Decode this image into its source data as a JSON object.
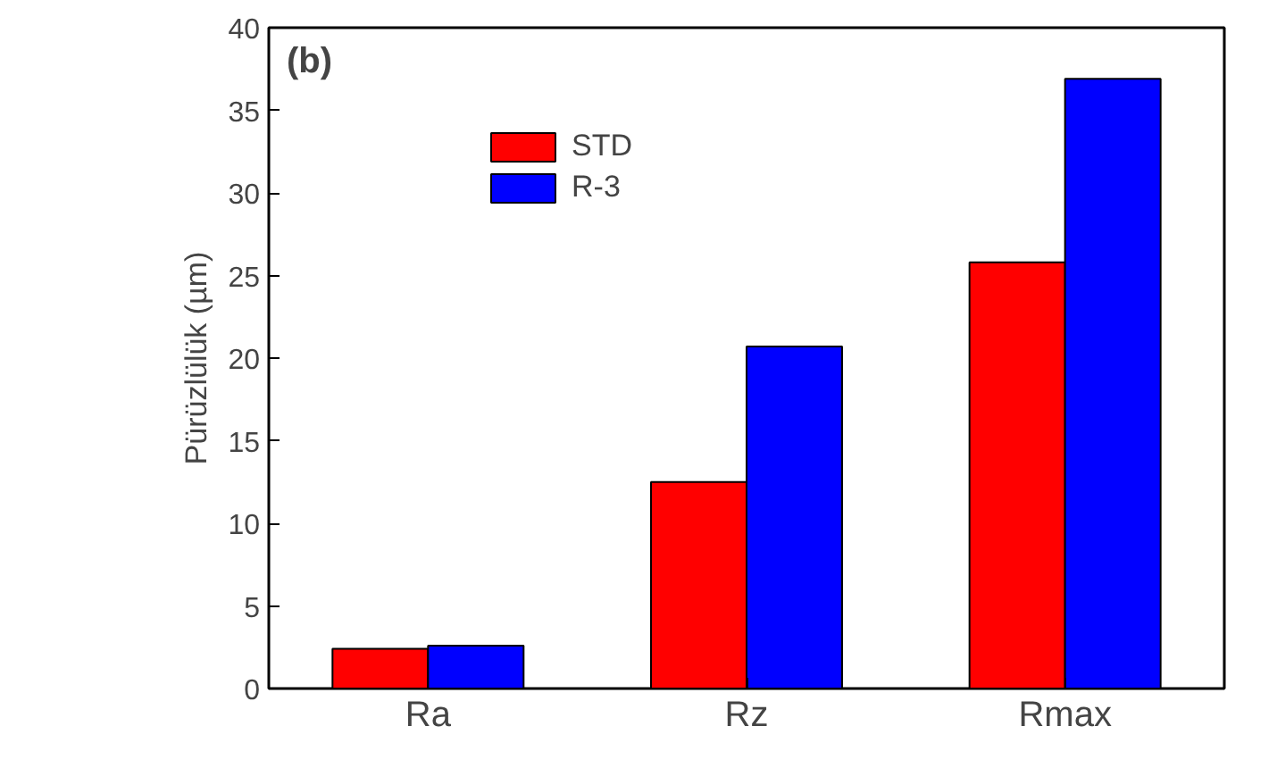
{
  "chart_data": {
    "type": "bar",
    "ylabel": "Pürüzlülük (µm)",
    "annotations": [
      "(b)"
    ],
    "categories": [
      "Ra",
      "Rz",
      "Rmax"
    ],
    "series": [
      {
        "name": "STD",
        "color": "#ff0000",
        "values": [
          2.4,
          12.5,
          25.8
        ]
      },
      {
        "name": "R-3",
        "color": "#0000ff",
        "values": [
          2.6,
          20.7,
          36.9
        ]
      }
    ],
    "ylim": [
      0,
      40
    ],
    "yticks": [
      0,
      5,
      10,
      15,
      20,
      25,
      30,
      35,
      40
    ],
    "legend": "top left",
    "grid": false
  }
}
